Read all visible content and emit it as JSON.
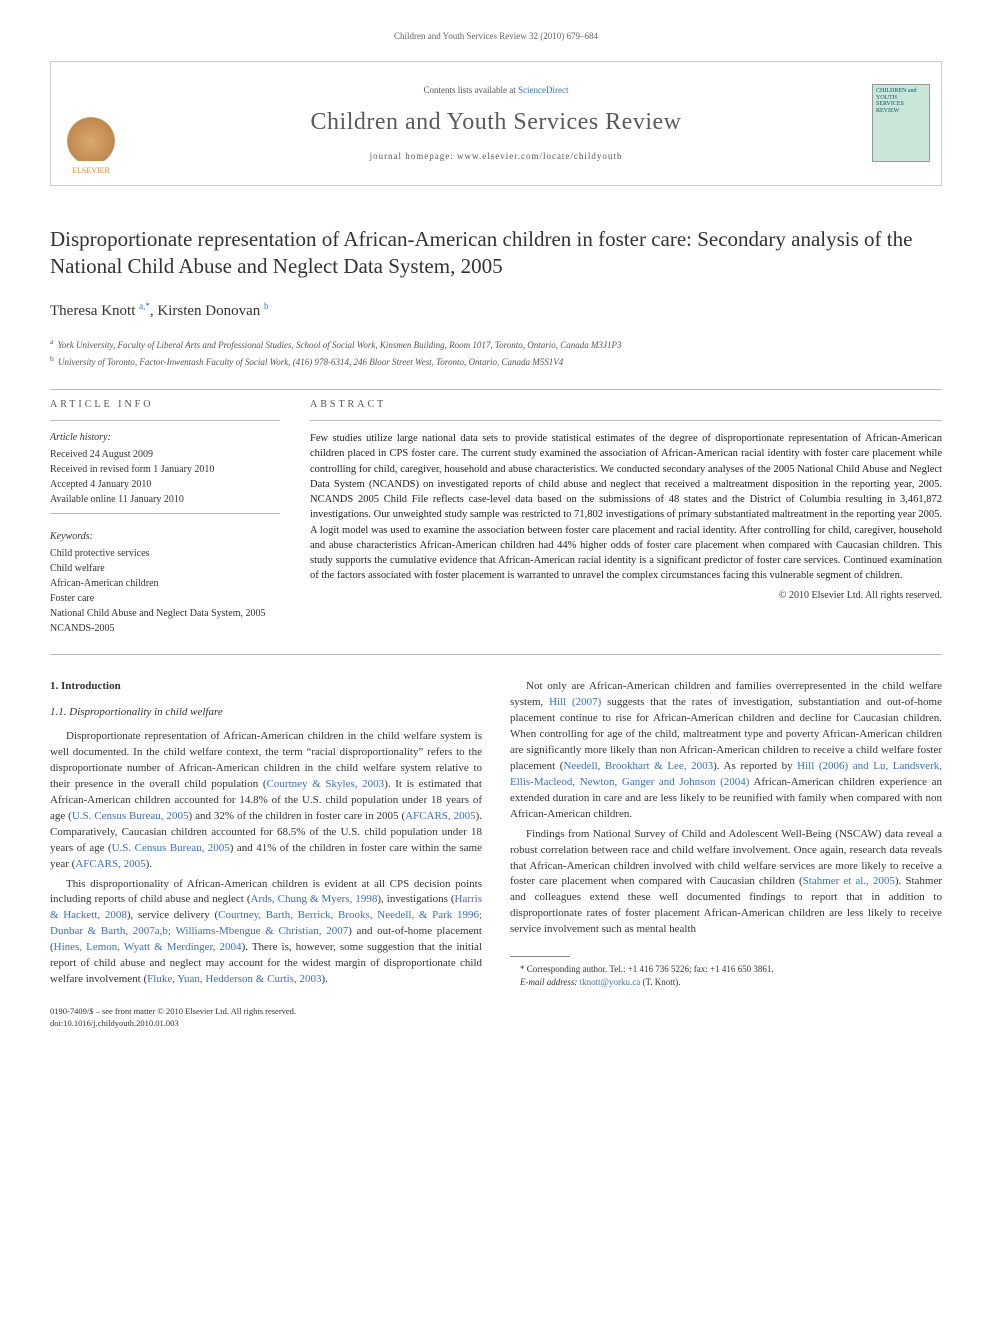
{
  "running_header": "Children and Youth Services Review 32 (2010) 679–684",
  "banner": {
    "contents_pre": "Contents lists available at ",
    "contents_link": "ScienceDirect",
    "journal_title": "Children and Youth Services Review",
    "homepage_pre": "journal homepage: ",
    "homepage_url": "www.elsevier.com/locate/childyouth",
    "publisher_label": "ELSEVIER",
    "cover_text": "CHILDREN and YOUTH SERVICES REVIEW"
  },
  "title": "Disproportionate representation of African-American children in foster care: Secondary analysis of the National Child Abuse and Neglect Data System, 2005",
  "authors_html_parts": {
    "a1_name": "Theresa Knott",
    "a1_sup": "a,",
    "a1_marks": "*",
    "sep": ", ",
    "a2_name": "Kirsten Donovan",
    "a2_sup": "b"
  },
  "affiliations": [
    {
      "sup": "a",
      "text": "York University, Faculty of Liberal Arts and Professional Studies, School of Social Work, Kinsmen Building, Room 1017, Toronto, Ontario, Canada M3J1P3"
    },
    {
      "sup": "b",
      "text": "University of Toronto, Factor-Inwentash Faculty of Social Work, (416) 978-6314, 246 Bloor Street West, Toronto, Ontario, Canada M5S1V4"
    }
  ],
  "info": {
    "header": "ARTICLE INFO",
    "history_label": "Article history:",
    "history": [
      "Received 24 August 2009",
      "Received in revised form 1 January 2010",
      "Accepted 4 January 2010",
      "Available online 11 January 2010"
    ],
    "keywords_label": "Keywords:",
    "keywords": [
      "Child protective services",
      "Child welfare",
      "African-American children",
      "Foster care",
      "National Child Abuse and Neglect Data System, 2005",
      "NCANDS-2005"
    ]
  },
  "abstract": {
    "header": "ABSTRACT",
    "text": "Few studies utilize large national data sets to provide statistical estimates of the degree of disproportionate representation of African-American children placed in CPS foster care. The current study examined the association of African-American racial identity with foster care placement while controlling for child, caregiver, household and abuse characteristics. We conducted secondary analyses of the 2005 National Child Abuse and Neglect Data System (NCANDS) on investigated reports of child abuse and neglect that received a maltreatment disposition in the reporting year, 2005. NCANDS 2005 Child File reflects case-level data based on the submissions of 48 states and the District of Columbia resulting in 3,461,872 investigations. Our unweighted study sample was restricted to 71,802 investigations of primary substantiated maltreatment in the reporting year 2005. A logit model was used to examine the association between foster care placement and racial identity. After controlling for child, caregiver, household and abuse characteristics African-American children had 44% higher odds of foster care placement when compared with Caucasian children. This study supports the cumulative evidence that African-American racial identity is a significant predictor of foster care services. Continued examination of the factors associated with foster placement is warranted to unravel the complex circumstances facing this vulnerable segment of children.",
    "copyright": "© 2010 Elsevier Ltd. All rights reserved."
  },
  "body": {
    "section1_heading": "1. Introduction",
    "subsection_heading": "1.1. Disproportionality in child welfare",
    "p1_pre": "Disproportionate representation of African-American children in the child welfare system is well documented. In the child welfare context, the term “racial disproportionality” refers to the disproportionate number of African-American children in the child welfare system relative to their presence in the overall child population (",
    "p1_link1": "Courtney & Skyles, 2003",
    "p1_mid1": "). It is estimated that African-American children accounted for 14.8% of the U.S. child population under 18 years of age (",
    "p1_link2": "U.S. Census Bureau, 2005",
    "p1_mid2": ") and 32% of the children in foster care in 2005 (",
    "p1_link3": "AFCARS, 2005",
    "p1_mid3": "). Comparatively, Caucasian children accounted for 68.5% of the U.S. child population under 18 years of age (",
    "p1_link4": "U.S. Census Bureau, 2005",
    "p1_mid4": ") and 41% of the children in foster care within the same year (",
    "p1_link5": "AFCARS, 2005",
    "p1_post": ").",
    "p2_pre": "This disproportionality of African-American children is evident at all CPS decision points including reports of child abuse and neglect (",
    "p2_link1": "Ards, Chung & Myers, 1998",
    "p2_mid1": "), investigations (",
    "p2_link2": "Harris & Hackett, 2008",
    "p2_mid2": "), service delivery (",
    "p2_link3": "Courtney, Barth, Berrick, Brooks, Needell, & Park 1996; Dunbar & Barth, 2007a,b; Williams-Mbengue & Christian, 2007",
    "p2_mid3": ") and out-of-home placement (",
    "p2_link4": "Hines, Lemon, Wyatt & Merdinger, 2004",
    "p2_mid4": "). There is, however, some suggestion that the initial report of child abuse and neglect may account for the widest margin of disproportionate child welfare involvement (",
    "p2_link5": "Fluke, Yuan, Hedderson & Curtis, 2003",
    "p2_post": ").",
    "p3_pre": "Not only are African-American children and families overrepresented in the child welfare system, ",
    "p3_link1": "Hill (2007)",
    "p3_mid1": " suggests that the rates of investigation, substantiation and out-of-home placement continue to rise for African-American children and decline for Caucasian children. When controlling for age of the child, maltreatment type and poverty African-American children are significantly more likely than non African-American children to receive a child welfare foster placement (",
    "p3_link2": "Needell, Brookhart & Lee, 2003",
    "p3_mid2": "). As reported by ",
    "p3_link3": "Hill (2006) and Lu, Landsverk, Ellis-Macleod, Newton, Ganger and Johnson (2004)",
    "p3_post": " African-American children experience an extended duration in care and are less likely to be reunified with family when compared with non African-American children.",
    "p4_pre": "Findings from National Survey of Child and Adolescent Well-Being (NSCAW) data reveal a robust correlation between race and child welfare involvement. Once again, research data reveals that African-American children involved with child welfare services are more likely to receive a foster care placement when compared with Caucasian children (",
    "p4_link1": "Stahmer et al., 2005",
    "p4_post": "). Stahmer and colleagues extend these well documented findings to report that in addition to disproportionate rates of foster placement African-American children are less likely to receive service involvement such as mental health"
  },
  "footnote": {
    "corr_label": "* Corresponding author. ",
    "corr_text": "Tel.: +1 416 736 5226; fax: +1 416 650 3861.",
    "email_label": "E-mail address:",
    "email": " tknott@yorku.ca ",
    "email_post": "(T. Knott)."
  },
  "bottom": {
    "line1": "0190-7409/$ – see front matter © 2010 Elsevier Ltd. All rights reserved.",
    "line2": "doi:10.1016/j.childyouth.2010.01.003"
  },
  "colors": {
    "link": "#3a6fb7",
    "text": "#333333",
    "rule": "#bbbbbb",
    "publisher": "#e68a2e",
    "cover_bg": "#c9e6d9"
  }
}
